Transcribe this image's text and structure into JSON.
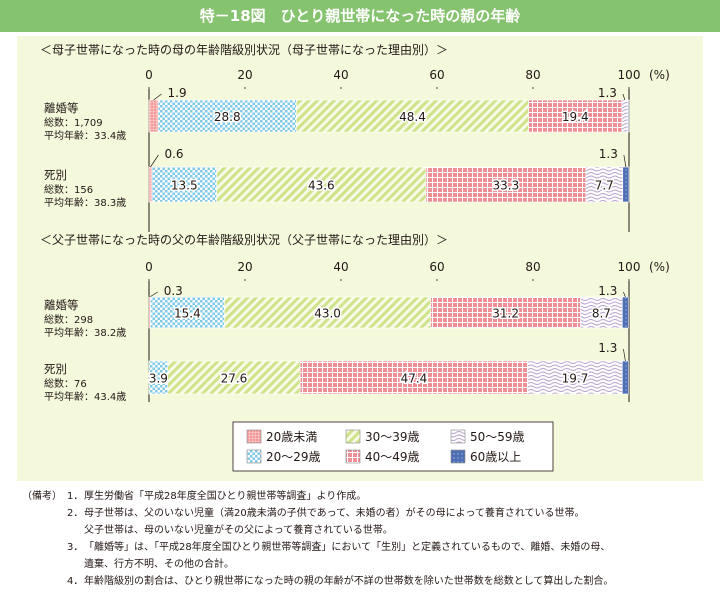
{
  "title": "特－18図　ひとり親世帯になった時の親の年齢",
  "colors": {
    "title_bg": "#86c36f",
    "panel_bg": "#f4f9dc",
    "age_u20": "#f3999a",
    "age_20s": "#7fc8e8",
    "age_30s": "#cfe38a",
    "age_40s": "#ee8f95",
    "age_50s": "#b7a0cf",
    "age_60s": "#4f6fb5"
  },
  "axis": {
    "ticks": [
      "0",
      "20",
      "40",
      "60",
      "80",
      "100"
    ],
    "unit": "(%)"
  },
  "legend_order": [
    0,
    2,
    4,
    1,
    3,
    5
  ],
  "chart_data": [
    {
      "type": "bar",
      "stacked": true,
      "orientation": "horizontal",
      "title": "＜母子世帯になった時の母の年齢階級別状況（母子世帯になった理由別）＞",
      "xlim": [
        0,
        100
      ],
      "rows": [
        {
          "name": "離婚等",
          "total": "総数：1,709",
          "avg": "平均年齢：33.4歳",
          "values": [
            1.9,
            28.8,
            48.4,
            19.4,
            1.3,
            0.2
          ],
          "labels": [
            "1.9",
            "28.8",
            "48.4",
            "19.4",
            "1.3",
            ""
          ]
        },
        {
          "name": "死別",
          "total": "総数：156",
          "avg": "平均年齢：38.3歳",
          "values": [
            0.6,
            13.5,
            43.6,
            33.3,
            7.7,
            1.3
          ],
          "labels": [
            "0.6",
            "13.5",
            "43.6",
            "33.3",
            "7.7",
            "1.3"
          ]
        }
      ],
      "series": [
        {
          "name": "20歳未満"
        },
        {
          "name": "20～29歳"
        },
        {
          "name": "30～39歳"
        },
        {
          "name": "40～49歳"
        },
        {
          "name": "50～59歳"
        },
        {
          "name": "60歳以上"
        }
      ]
    },
    {
      "type": "bar",
      "stacked": true,
      "orientation": "horizontal",
      "title": "＜父子世帯になった時の父の年齢階級別状況（父子世帯になった理由別）＞",
      "xlim": [
        0,
        100
      ],
      "rows": [
        {
          "name": "離婚等",
          "total": "総数：298",
          "avg": "平均年齢：38.2歳",
          "values": [
            0.3,
            15.4,
            43.0,
            31.2,
            8.7,
            1.3
          ],
          "labels": [
            "0.3",
            "15.4",
            "43.0",
            "31.2",
            "8.7",
            "1.3"
          ]
        },
        {
          "name": "死別",
          "total": "総数：76",
          "avg": "平均年齢：43.4歳",
          "values": [
            0,
            3.9,
            27.6,
            47.4,
            19.7,
            1.3
          ],
          "labels": [
            "",
            "3.9",
            "27.6",
            "47.4",
            "19.7",
            "1.3"
          ]
        }
      ],
      "series": [
        {
          "name": "20歳未満"
        },
        {
          "name": "20～29歳"
        },
        {
          "name": "30～39歳"
        },
        {
          "name": "40～49歳"
        },
        {
          "name": "50～59歳"
        },
        {
          "name": "60歳以上"
        }
      ]
    }
  ],
  "notes": {
    "head": "（備考）",
    "items": [
      {
        "num": "1．",
        "text": "厚生労働省「平成28年度全国ひとり親世帯等調査」より作成。"
      },
      {
        "num": "2．",
        "text": "母子世帯は、父のいない児童（満20歳未満の子供であって、未婚の者）がその母によって養育されている世帯。"
      },
      {
        "num": "",
        "text": "父子世帯は、母のいない児童がその父によって養育されている世帯。"
      },
      {
        "num": "3．",
        "text": "「離婚等」は、「平成28年度全国ひとり親世帯等調査」において「生別」と定義されているもので、離婚、未婚の母、"
      },
      {
        "num": "",
        "text": "遺棄、行方不明、その他の合計。"
      },
      {
        "num": "4．",
        "text": "年齢階級別の割合は、ひとり親世帯になった時の親の年齢が不詳の世帯数を除いた世帯数を総数として算出した割合。"
      }
    ]
  }
}
